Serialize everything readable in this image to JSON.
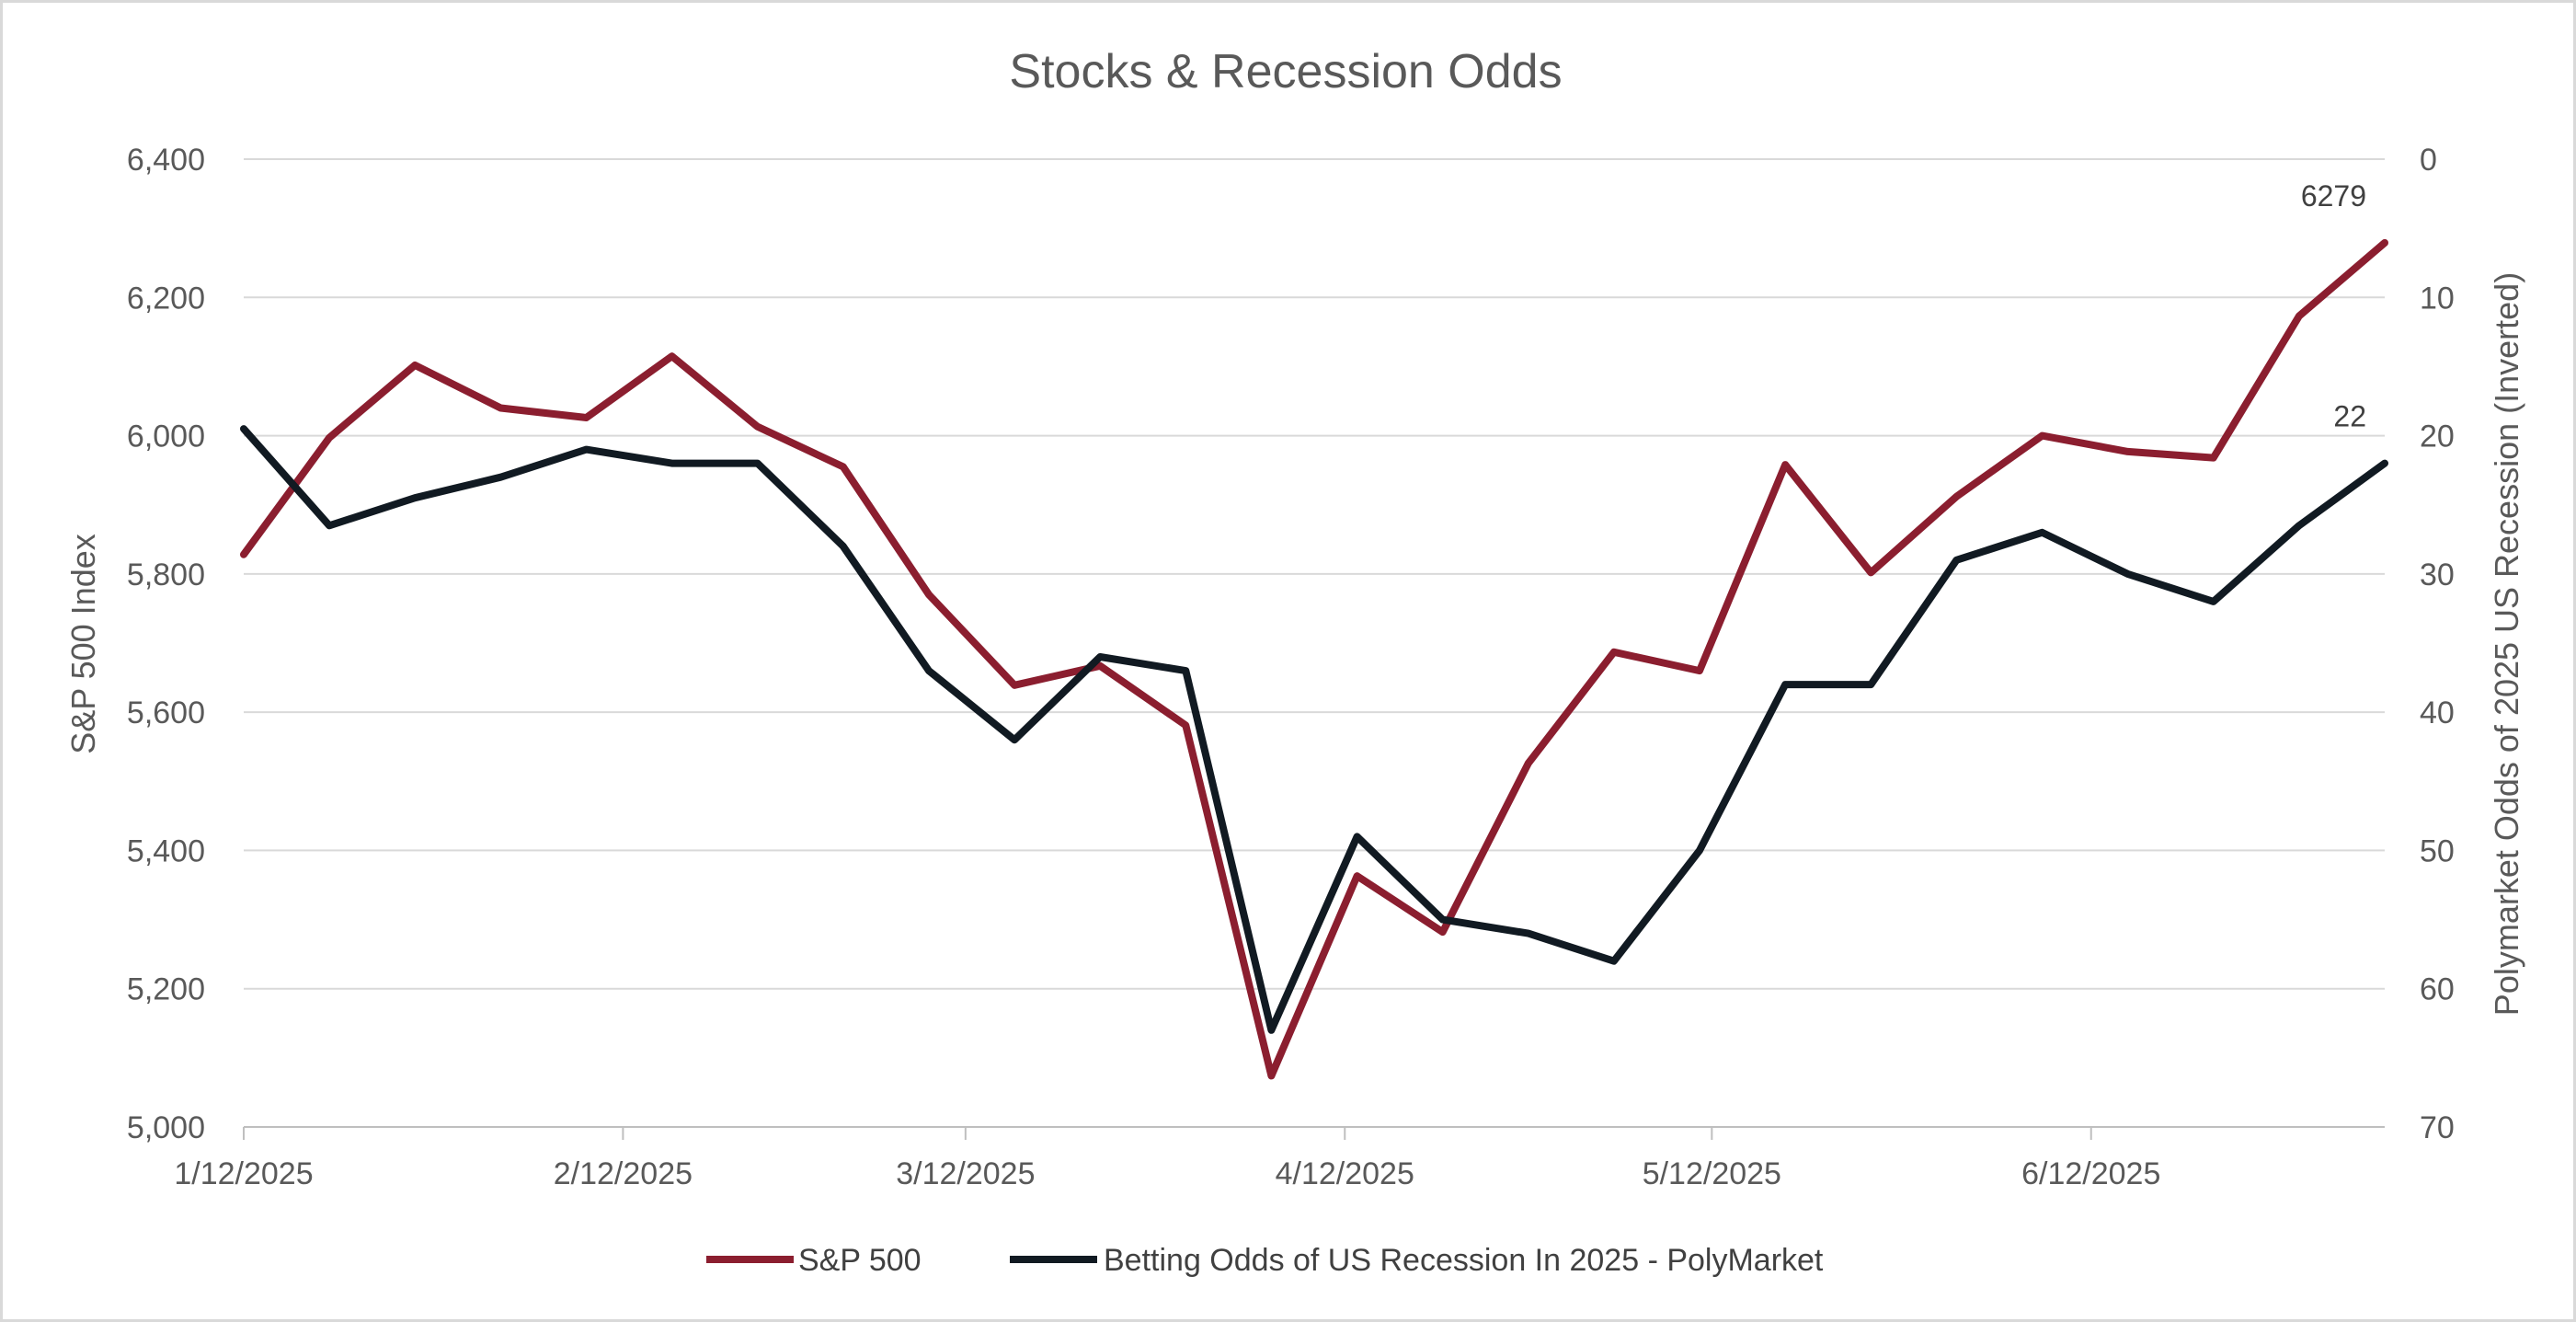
{
  "chart_data": {
    "type": "line",
    "title": "Stocks & Recession Odds",
    "ylabel": "S&P 500 Index",
    "y2label": "Polymarket Odds of 2025 US Recession (Inverted)",
    "xlabel": "",
    "ylim": [
      5000,
      6400
    ],
    "y2lim": [
      0,
      70
    ],
    "y2_inverted": true,
    "yticks": [
      "5,000",
      "5,200",
      "5,400",
      "5,600",
      "5,800",
      "6,000",
      "6,200",
      "6,400"
    ],
    "y2ticks": [
      "0",
      "10",
      "20",
      "30",
      "40",
      "50",
      "60",
      "70"
    ],
    "xticks": [
      {
        "date": "2025-01-12",
        "label": "1/12/2025"
      },
      {
        "date": "2025-02-12",
        "label": "2/12/2025"
      },
      {
        "date": "2025-03-12",
        "label": "3/12/2025"
      },
      {
        "date": "2025-04-12",
        "label": "4/12/2025"
      },
      {
        "date": "2025-05-12",
        "label": "5/12/2025"
      },
      {
        "date": "2025-06-12",
        "label": "6/12/2025"
      }
    ],
    "x": [
      "2025-01-12",
      "2025-01-19",
      "2025-01-26",
      "2025-02-02",
      "2025-02-09",
      "2025-02-16",
      "2025-02-23",
      "2025-03-02",
      "2025-03-09",
      "2025-03-16",
      "2025-03-23",
      "2025-03-30",
      "2025-04-06",
      "2025-04-13",
      "2025-04-20",
      "2025-04-27",
      "2025-05-04",
      "2025-05-11",
      "2025-05-18",
      "2025-05-25",
      "2025-06-01",
      "2025-06-08",
      "2025-06-15",
      "2025-06-22",
      "2025-06-29",
      "2025-07-06"
    ],
    "series": [
      {
        "name": "S&P 500",
        "axis": "left",
        "color": "#8b1e2f",
        "values": [
          5828,
          5997,
          6102,
          6040,
          6026,
          6115,
          6013,
          5955,
          5770,
          5639,
          5667,
          5581,
          5074,
          5363,
          5282,
          5526,
          5687,
          5660,
          5958,
          5802,
          5912,
          6000,
          5977,
          5968,
          6173,
          6279
        ],
        "end_label": "6279"
      },
      {
        "name": "Betting Odds of US Recession In 2025 - PolyMarket",
        "axis": "right",
        "color": "#111a22",
        "values": [
          19.5,
          26.5,
          24.5,
          23,
          21,
          22,
          22,
          28,
          37,
          42,
          36,
          37,
          63,
          49,
          55,
          56,
          58,
          50,
          38,
          38,
          29,
          27,
          30,
          32,
          26.5,
          22
        ],
        "end_label": "22"
      }
    ],
    "grid": true,
    "legend": "bottom"
  }
}
